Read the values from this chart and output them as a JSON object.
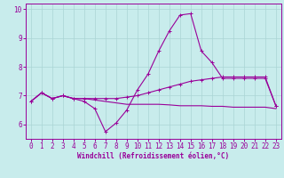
{
  "xlabel": "Windchill (Refroidissement éolien,°C)",
  "background_color": "#c8ecec",
  "grid_color": "#aad4d4",
  "line_color": "#990099",
  "x_values": [
    0,
    1,
    2,
    3,
    4,
    5,
    6,
    7,
    8,
    9,
    10,
    11,
    12,
    13,
    14,
    15,
    16,
    17,
    18,
    19,
    20,
    21,
    22,
    23
  ],
  "line1": [
    6.8,
    7.1,
    6.9,
    7.0,
    6.9,
    6.8,
    6.55,
    5.75,
    6.05,
    6.5,
    7.2,
    7.75,
    8.55,
    9.25,
    9.8,
    9.85,
    8.55,
    8.15,
    7.6,
    7.6,
    7.6,
    7.6,
    7.6,
    6.65
  ],
  "line2": [
    6.8,
    7.1,
    6.9,
    7.0,
    6.9,
    6.9,
    6.9,
    6.9,
    6.9,
    6.95,
    7.0,
    7.1,
    7.2,
    7.3,
    7.4,
    7.5,
    7.55,
    7.6,
    7.65,
    7.65,
    7.65,
    7.65,
    7.65,
    6.65
  ],
  "line3": [
    6.8,
    7.1,
    6.9,
    7.0,
    6.9,
    6.9,
    6.85,
    6.8,
    6.75,
    6.7,
    6.7,
    6.7,
    6.7,
    6.68,
    6.65,
    6.65,
    6.65,
    6.63,
    6.63,
    6.6,
    6.6,
    6.6,
    6.6,
    6.55
  ],
  "ylim": [
    5.5,
    10.2
  ],
  "yticks": [
    6,
    7,
    8,
    9,
    10
  ],
  "xticks": [
    0,
    1,
    2,
    3,
    4,
    5,
    6,
    7,
    8,
    9,
    10,
    11,
    12,
    13,
    14,
    15,
    16,
    17,
    18,
    19,
    20,
    21,
    22,
    23
  ],
  "tick_fontsize": 5.5,
  "xlabel_fontsize": 5.5
}
